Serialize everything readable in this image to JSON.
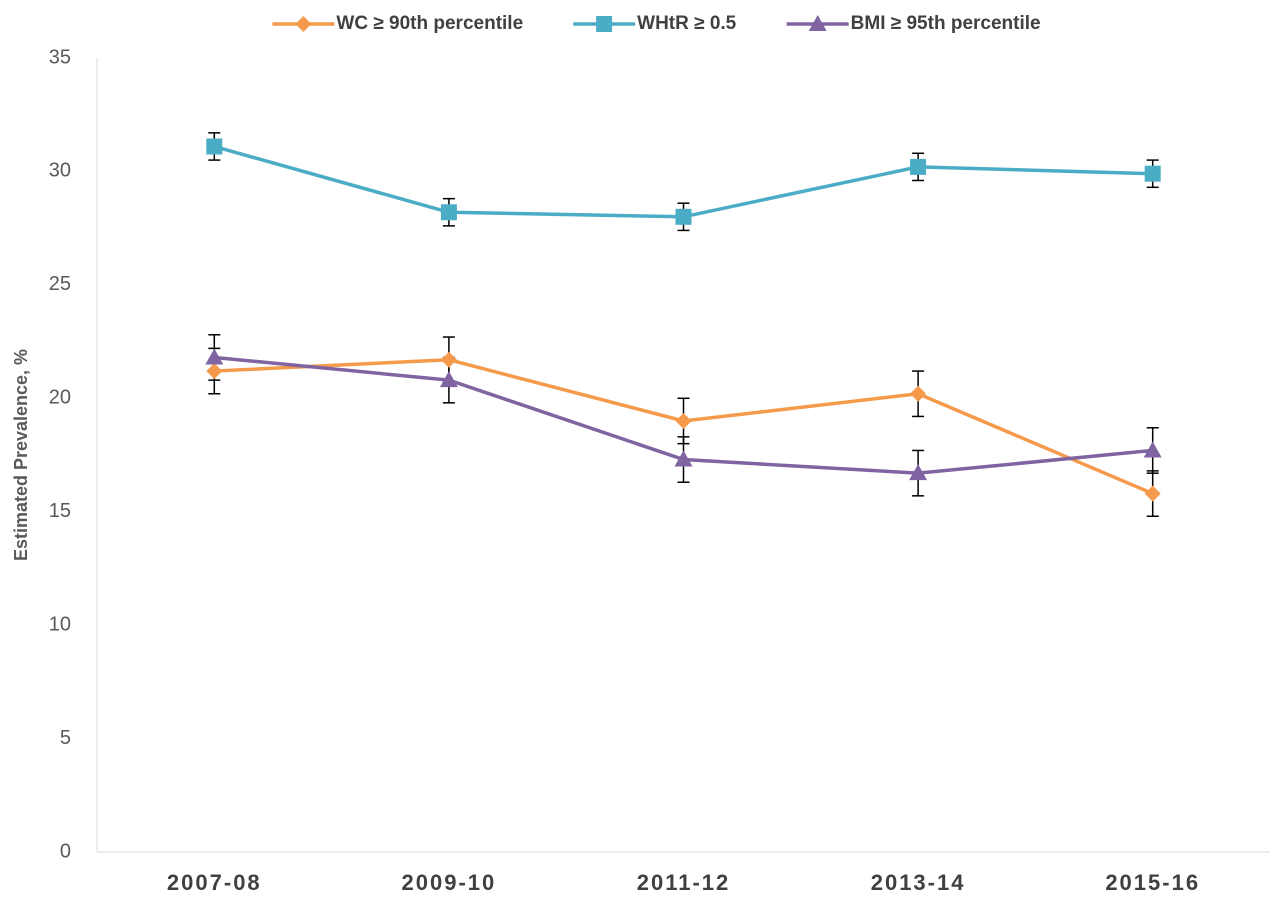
{
  "chart_data": {
    "type": "line",
    "y_label": "Estimated Prevalence, %",
    "categories": [
      "2007-08",
      "2009-10",
      "2011-12",
      "2013-14",
      "2015-16"
    ],
    "series": [
      {
        "name": "WC ≥ 90th percentile",
        "color": "#f59a4b",
        "marker": "diamond",
        "values": [
          21.2,
          21.7,
          19.0,
          20.2,
          15.8
        ],
        "errors": [
          1.0,
          1.0,
          1.0,
          1.0,
          1.0
        ]
      },
      {
        "name": "WHtR ≥ 0.5",
        "color": "#4bacc6",
        "marker": "square",
        "values": [
          31.1,
          28.2,
          28.0,
          30.2,
          29.9
        ],
        "errors": [
          0.6,
          0.6,
          0.6,
          0.6,
          0.6
        ]
      },
      {
        "name": "BMI ≥ 95th percentile",
        "color": "#8064a2",
        "marker": "triangle",
        "values": [
          21.8,
          20.8,
          17.3,
          16.7,
          17.7
        ],
        "errors": [
          1.0,
          1.0,
          1.0,
          1.0,
          1.0
        ]
      }
    ],
    "ylim": [
      0,
      35
    ],
    "yticks": [
      0,
      5,
      10,
      15,
      20,
      25,
      30,
      35
    ],
    "grid": false,
    "legend": "top"
  }
}
